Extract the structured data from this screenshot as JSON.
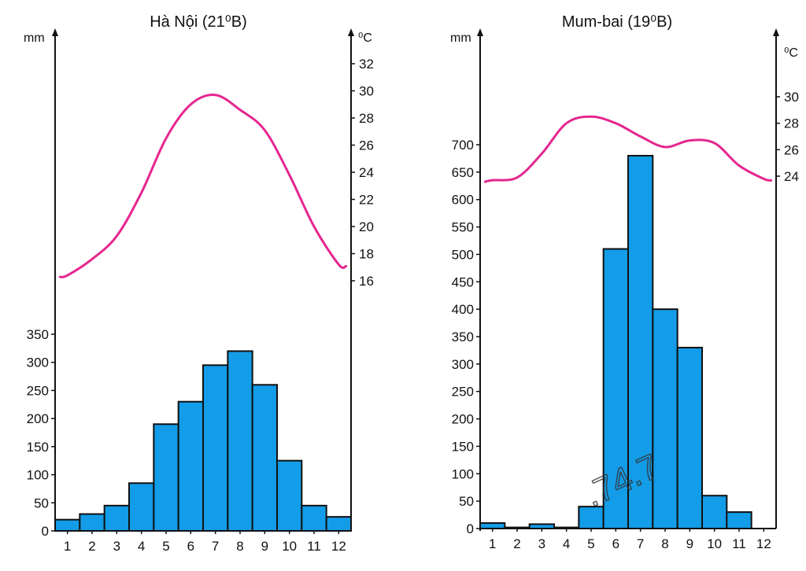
{
  "colors": {
    "bar": "#139ce8",
    "line": "#e5268f",
    "axis": "#111111"
  },
  "watermark": ".74.7",
  "chart_data": [
    {
      "type": "bar+line",
      "title": "Hà Nội (21⁰B)",
      "ylabel_left": "mm",
      "ylabel_right": "⁰C",
      "categories": [
        "1",
        "2",
        "3",
        "4",
        "5",
        "6",
        "7",
        "8",
        "9",
        "10",
        "11",
        "12"
      ],
      "rain_ticks": [
        "0",
        "50",
        "100",
        "150",
        "200",
        "250",
        "300",
        "350"
      ],
      "temp_ticks": [
        "16",
        "18",
        "20",
        "22",
        "24",
        "26",
        "28",
        "30",
        "32"
      ],
      "ylim_rain": [
        0,
        350
      ],
      "ylim_temp": [
        16,
        32
      ],
      "rain_values": [
        20,
        30,
        45,
        85,
        190,
        230,
        295,
        320,
        260,
        125,
        45,
        25
      ],
      "temp_values": [
        16.4,
        17.6,
        19.3,
        22.5,
        26.5,
        29.0,
        29.7,
        28.6,
        27.1,
        23.8,
        20.0,
        17.2
      ]
    },
    {
      "type": "bar+line",
      "title": "Mum-bai (19⁰B)",
      "ylabel_left": "mm",
      "ylabel_right": "⁰C",
      "categories": [
        "1",
        "2",
        "3",
        "4",
        "5",
        "6",
        "7",
        "8",
        "9",
        "10",
        "11",
        "12"
      ],
      "rain_ticks": [
        "0",
        "50",
        "100",
        "150",
        "200",
        "250",
        "300",
        "350",
        "400",
        "450",
        "500",
        "550",
        "600",
        "650",
        "700"
      ],
      "temp_ticks": [
        "24",
        "26",
        "28",
        "30"
      ],
      "ylim_rain": [
        0,
        700
      ],
      "ylim_temp": [
        24,
        30
      ],
      "rain_values": [
        10,
        2,
        8,
        2,
        40,
        510,
        680,
        400,
        330,
        60,
        30,
        0
      ],
      "temp_values": [
        23.7,
        23.9,
        25.7,
        28.0,
        28.5,
        28.0,
        27.0,
        26.2,
        26.7,
        26.5,
        24.8,
        23.8
      ]
    }
  ]
}
